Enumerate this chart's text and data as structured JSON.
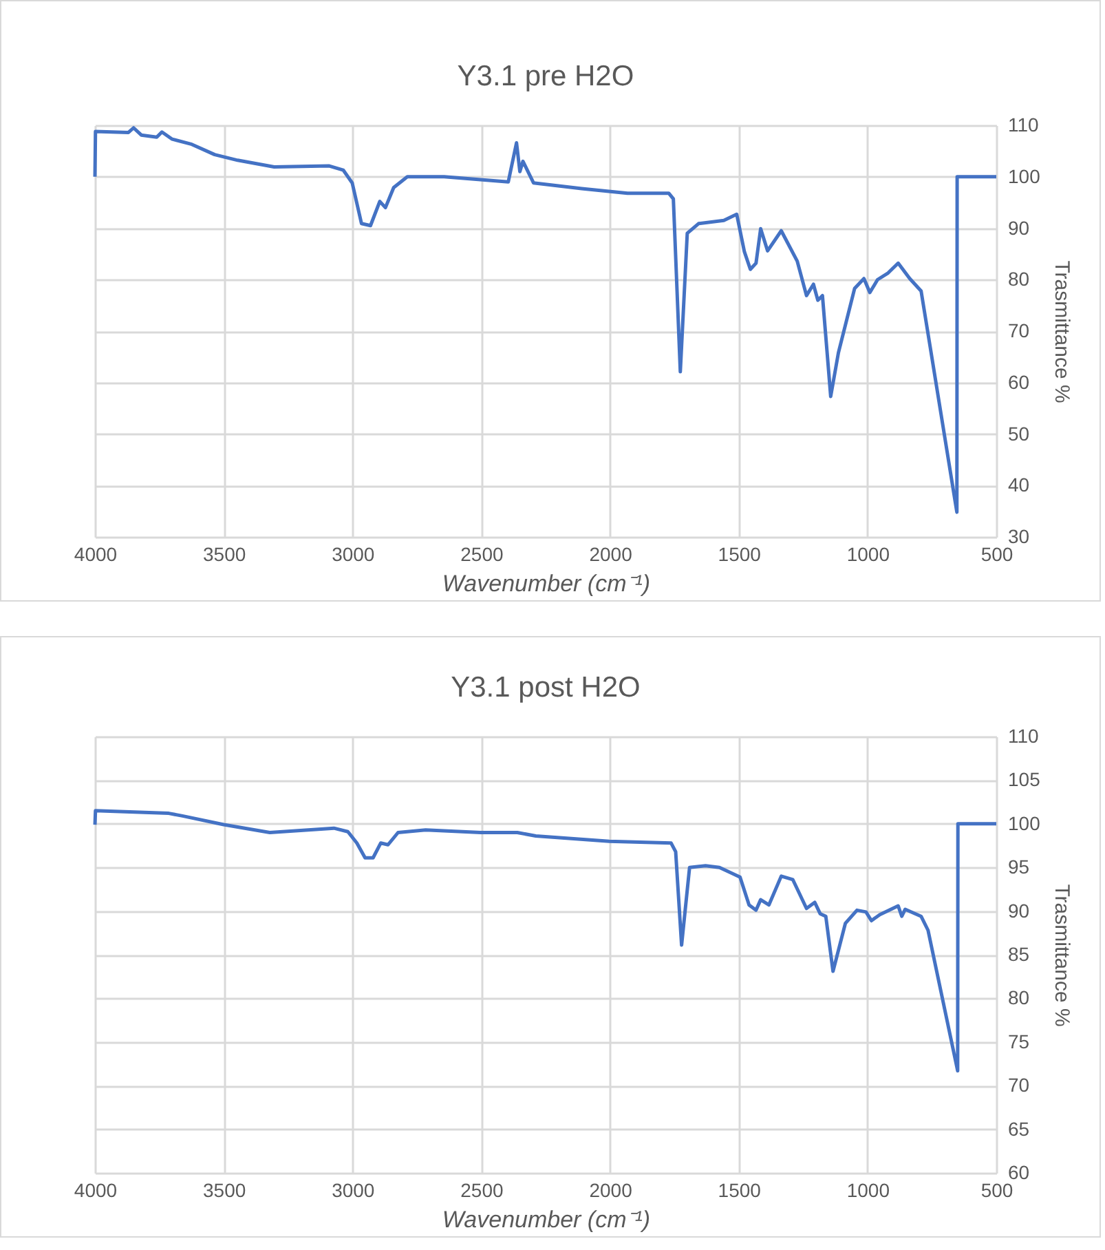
{
  "chart_data": [
    {
      "type": "line",
      "title": "Y3.1 pre H2O",
      "xlabel": "Wavenumber (cm⁻¹)",
      "ylabel": "Trasmittance %",
      "color": "#4472c4",
      "grid": true,
      "xlim": [
        4000,
        500
      ],
      "xticks": [
        4000,
        3500,
        3000,
        2500,
        2000,
        1500,
        1000,
        500
      ],
      "ylim": [
        30,
        110
      ],
      "yticks": [
        30,
        40,
        50,
        60,
        70,
        80,
        90,
        100,
        110
      ],
      "x": [
        4000,
        3998,
        3870,
        3850,
        3820,
        3760,
        3740,
        3700,
        3624,
        3535,
        3446,
        3304,
        3090,
        3036,
        3001,
        2965,
        2930,
        2894,
        2872,
        2840,
        2787,
        2644,
        2395,
        2363,
        2350,
        2338,
        2297,
        2110,
        1932,
        1772,
        1754,
        1727,
        1700,
        1656,
        1558,
        1508,
        1478,
        1455,
        1433,
        1415,
        1388,
        1335,
        1273,
        1237,
        1210,
        1193,
        1175,
        1143,
        1113,
        1050,
        1014,
        991,
        961,
        920,
        881,
        836,
        792,
        756,
        653,
        652,
        500
      ],
      "values": [
        100,
        108.8,
        108.6,
        109.5,
        108.1,
        107.7,
        108.7,
        107.3,
        106.3,
        104.3,
        103.2,
        101.9,
        102.1,
        101.3,
        98.8,
        90.9,
        90.5,
        95.2,
        94.0,
        97.9,
        100,
        100,
        99.0,
        106.6,
        101.0,
        103.0,
        98.8,
        97.7,
        96.8,
        96.8,
        95.7,
        62.1,
        89.0,
        90.9,
        91.5,
        92.7,
        85.4,
        82.0,
        83.2,
        89.9,
        85.6,
        89.5,
        83.6,
        76.9,
        79.1,
        76.0,
        76.9,
        57.3,
        65.8,
        78.3,
        80.2,
        77.5,
        80.0,
        81.3,
        83.2,
        80.2,
        77.8,
        66.7,
        34.8,
        100,
        100
      ]
    },
    {
      "type": "line",
      "title": "Y3.1 post H2O",
      "xlabel": "Wavenumber (cm⁻¹)",
      "ylabel": "Trasmittance %",
      "color": "#4472c4",
      "grid": true,
      "xlim": [
        4000,
        500
      ],
      "xticks": [
        4000,
        3500,
        3000,
        2500,
        2000,
        1500,
        1000,
        500
      ],
      "ylim": [
        60,
        110
      ],
      "yticks": [
        60,
        65,
        70,
        75,
        80,
        85,
        90,
        95,
        100,
        105,
        110
      ],
      "x": [
        4000,
        3998,
        3713,
        3660,
        3500,
        3321,
        3072,
        3018,
        2983,
        2951,
        2920,
        2890,
        2862,
        2823,
        2716,
        2502,
        2360,
        2288,
        2003,
        1763,
        1745,
        1722,
        1691,
        1629,
        1575,
        1495,
        1460,
        1433,
        1415,
        1383,
        1335,
        1290,
        1237,
        1205,
        1184,
        1162,
        1134,
        1086,
        1041,
        1006,
        985,
        952,
        881,
        867,
        854,
        792,
        765,
        650,
        649,
        500
      ],
      "values": [
        99.9,
        101.5,
        101.2,
        100.9,
        99.9,
        99.0,
        99.5,
        99.1,
        97.8,
        96.1,
        96.1,
        97.8,
        97.6,
        99.0,
        99.3,
        99.0,
        99.0,
        98.6,
        98.0,
        97.8,
        96.8,
        86.1,
        95.0,
        95.2,
        95.0,
        93.9,
        90.7,
        90.1,
        91.3,
        90.7,
        94.0,
        93.6,
        90.3,
        91.0,
        89.7,
        89.4,
        83.1,
        88.6,
        90.1,
        89.9,
        88.9,
        89.6,
        90.6,
        89.4,
        90.2,
        89.4,
        87.8,
        71.7,
        100,
        100
      ]
    }
  ]
}
